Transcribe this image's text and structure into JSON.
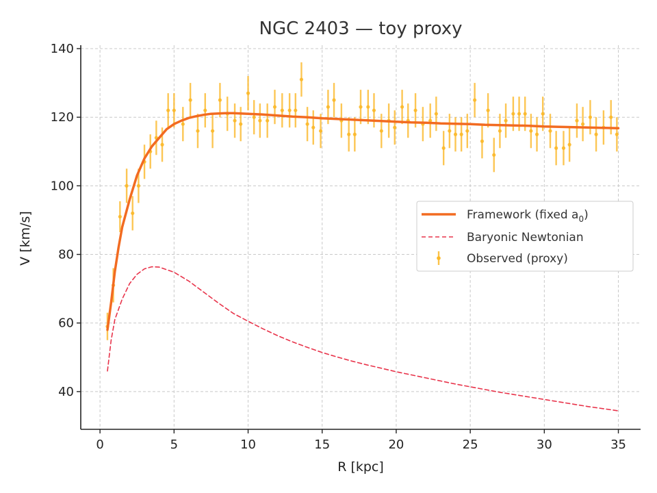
{
  "chart_data": {
    "type": "line",
    "title": "NGC 2403 — toy proxy",
    "xlabel": "R [kpc]",
    "ylabel": "V [km/s]",
    "xlim": [
      -1.3,
      36.5
    ],
    "ylim": [
      29,
      141
    ],
    "xticks": [
      0,
      5,
      10,
      15,
      20,
      25,
      30,
      35
    ],
    "yticks": [
      40,
      60,
      80,
      100,
      120,
      140
    ],
    "grid": true,
    "legend_position": "right",
    "colors": {
      "framework": "#f26b21",
      "baryonic": "#e8334a",
      "observed": "#fbb829",
      "axes": "#222222",
      "grid": "#c8c8c8"
    },
    "legend": {
      "framework": "Framework (fixed a",
      "framework_sub": "0",
      "framework_close": ")",
      "baryonic": "Baryonic Newtonian",
      "observed": "Observed (proxy)"
    },
    "series": [
      {
        "key": "framework",
        "style": "solid",
        "points": [
          [
            0.5,
            58
          ],
          [
            0.75,
            66
          ],
          [
            1.0,
            75
          ],
          [
            1.25,
            82
          ],
          [
            1.5,
            88
          ],
          [
            2.0,
            96
          ],
          [
            2.5,
            103
          ],
          [
            3.0,
            108
          ],
          [
            3.5,
            111.5
          ],
          [
            4.0,
            114
          ],
          [
            4.5,
            116.5
          ],
          [
            5.0,
            118
          ],
          [
            5.5,
            119
          ],
          [
            6.0,
            119.8
          ],
          [
            6.5,
            120.3
          ],
          [
            7.0,
            120.7
          ],
          [
            7.5,
            121.0
          ],
          [
            8.0,
            121.1
          ],
          [
            8.5,
            121.2
          ],
          [
            9.0,
            121.2
          ],
          [
            10.0,
            121.0
          ],
          [
            11.0,
            120.8
          ],
          [
            12.0,
            120.5
          ],
          [
            13.0,
            120.2
          ],
          [
            14.0,
            120.0
          ],
          [
            15.0,
            119.7
          ],
          [
            16.0,
            119.5
          ],
          [
            17.0,
            119.3
          ],
          [
            18.0,
            119.1
          ],
          [
            19.0,
            118.9
          ],
          [
            20.0,
            118.7
          ],
          [
            21.0,
            118.5
          ],
          [
            22.0,
            118.4
          ],
          [
            23.0,
            118.2
          ],
          [
            24.0,
            118.1
          ],
          [
            25.0,
            118.0
          ],
          [
            26.0,
            117.8
          ],
          [
            27.0,
            117.7
          ],
          [
            28.0,
            117.6
          ],
          [
            29.0,
            117.5
          ],
          [
            30.0,
            117.3
          ],
          [
            31.0,
            117.2
          ],
          [
            32.0,
            117.1
          ],
          [
            33.0,
            117.0
          ],
          [
            34.0,
            116.9
          ],
          [
            35.0,
            116.8
          ]
        ]
      },
      {
        "key": "baryonic",
        "style": "dashed",
        "points": [
          [
            0.5,
            46
          ],
          [
            0.75,
            55
          ],
          [
            1.0,
            61
          ],
          [
            1.5,
            67
          ],
          [
            2.0,
            71.5
          ],
          [
            2.5,
            74.2
          ],
          [
            3.0,
            75.8
          ],
          [
            3.5,
            76.4
          ],
          [
            4.0,
            76.3
          ],
          [
            5.0,
            74.8
          ],
          [
            6.0,
            72.2
          ],
          [
            7.0,
            69.0
          ],
          [
            8.0,
            65.8
          ],
          [
            9.0,
            62.8
          ],
          [
            10.0,
            60.5
          ],
          [
            11.0,
            58.3
          ],
          [
            12.0,
            56.3
          ],
          [
            13.0,
            54.5
          ],
          [
            14.0,
            52.9
          ],
          [
            15.0,
            51.4
          ],
          [
            16.0,
            50.1
          ],
          [
            17.0,
            48.9
          ],
          [
            18.0,
            47.8
          ],
          [
            19.0,
            46.8
          ],
          [
            20.0,
            45.8
          ],
          [
            21.0,
            44.9
          ],
          [
            22.0,
            44.0
          ],
          [
            23.0,
            43.1
          ],
          [
            24.0,
            42.2
          ],
          [
            25.0,
            41.4
          ],
          [
            26.0,
            40.6
          ],
          [
            27.0,
            39.8
          ],
          [
            28.0,
            39.1
          ],
          [
            29.0,
            38.4
          ],
          [
            30.0,
            37.7
          ],
          [
            31.0,
            37.0
          ],
          [
            32.0,
            36.3
          ],
          [
            33.0,
            35.6
          ],
          [
            34.0,
            35.0
          ],
          [
            35.0,
            34.4
          ]
        ]
      }
    ],
    "observed": {
      "points": [
        [
          0.5,
          59,
          4
        ],
        [
          0.9,
          71,
          5
        ],
        [
          1.35,
          91,
          4.5
        ],
        [
          1.8,
          100,
          5
        ],
        [
          2.2,
          92,
          5
        ],
        [
          2.6,
          100,
          5
        ],
        [
          3.0,
          107,
          5
        ],
        [
          3.4,
          110,
          5
        ],
        [
          3.8,
          114,
          5
        ],
        [
          4.2,
          112,
          5
        ],
        [
          4.6,
          122,
          5
        ],
        [
          5.0,
          122,
          5
        ],
        [
          5.6,
          118,
          5
        ],
        [
          6.1,
          125,
          5
        ],
        [
          6.6,
          116,
          5
        ],
        [
          7.1,
          122,
          5
        ],
        [
          7.6,
          116,
          5
        ],
        [
          8.1,
          125,
          5
        ],
        [
          8.6,
          121,
          5
        ],
        [
          9.1,
          119,
          5
        ],
        [
          9.5,
          118,
          5
        ],
        [
          10.0,
          127,
          5
        ],
        [
          10.4,
          120,
          5
        ],
        [
          10.8,
          119,
          5
        ],
        [
          11.3,
          119,
          5
        ],
        [
          11.8,
          123,
          5
        ],
        [
          12.3,
          122,
          5
        ],
        [
          12.8,
          122,
          5
        ],
        [
          13.2,
          122,
          5
        ],
        [
          13.6,
          131,
          5
        ],
        [
          14.0,
          118,
          5
        ],
        [
          14.4,
          117,
          5
        ],
        [
          14.9,
          116,
          5
        ],
        [
          15.4,
          123,
          5
        ],
        [
          15.8,
          125,
          5
        ],
        [
          16.3,
          119,
          5
        ],
        [
          16.8,
          115,
          5
        ],
        [
          17.2,
          115,
          5
        ],
        [
          17.6,
          123,
          5
        ],
        [
          18.1,
          123,
          5
        ],
        [
          18.5,
          122,
          5
        ],
        [
          19.0,
          116,
          5
        ],
        [
          19.5,
          119,
          5
        ],
        [
          19.9,
          117,
          5
        ],
        [
          20.4,
          123,
          5
        ],
        [
          20.8,
          119,
          5
        ],
        [
          21.3,
          122,
          5
        ],
        [
          21.8,
          118,
          5
        ],
        [
          22.3,
          119,
          5
        ],
        [
          22.7,
          121,
          5
        ],
        [
          23.2,
          111,
          5
        ],
        [
          23.6,
          116,
          5
        ],
        [
          24.0,
          115,
          5
        ],
        [
          24.4,
          115,
          5
        ],
        [
          24.8,
          116,
          5
        ],
        [
          25.3,
          125,
          5
        ],
        [
          25.8,
          113,
          5
        ],
        [
          26.2,
          122,
          5
        ],
        [
          26.6,
          109,
          5
        ],
        [
          27.0,
          116,
          5
        ],
        [
          27.4,
          119,
          5
        ],
        [
          27.9,
          121,
          5
        ],
        [
          28.3,
          121,
          5
        ],
        [
          28.7,
          121,
          5
        ],
        [
          29.1,
          116,
          5
        ],
        [
          29.5,
          115,
          5
        ],
        [
          29.9,
          121,
          5
        ],
        [
          30.4,
          116,
          5
        ],
        [
          30.8,
          111,
          5
        ],
        [
          31.3,
          111,
          5
        ],
        [
          31.7,
          112,
          5
        ],
        [
          32.2,
          119,
          5
        ],
        [
          32.6,
          118,
          5
        ],
        [
          33.1,
          120,
          5
        ],
        [
          33.5,
          115,
          5
        ],
        [
          34.0,
          117,
          5
        ],
        [
          34.5,
          120,
          5
        ],
        [
          34.9,
          115,
          5
        ]
      ]
    }
  }
}
